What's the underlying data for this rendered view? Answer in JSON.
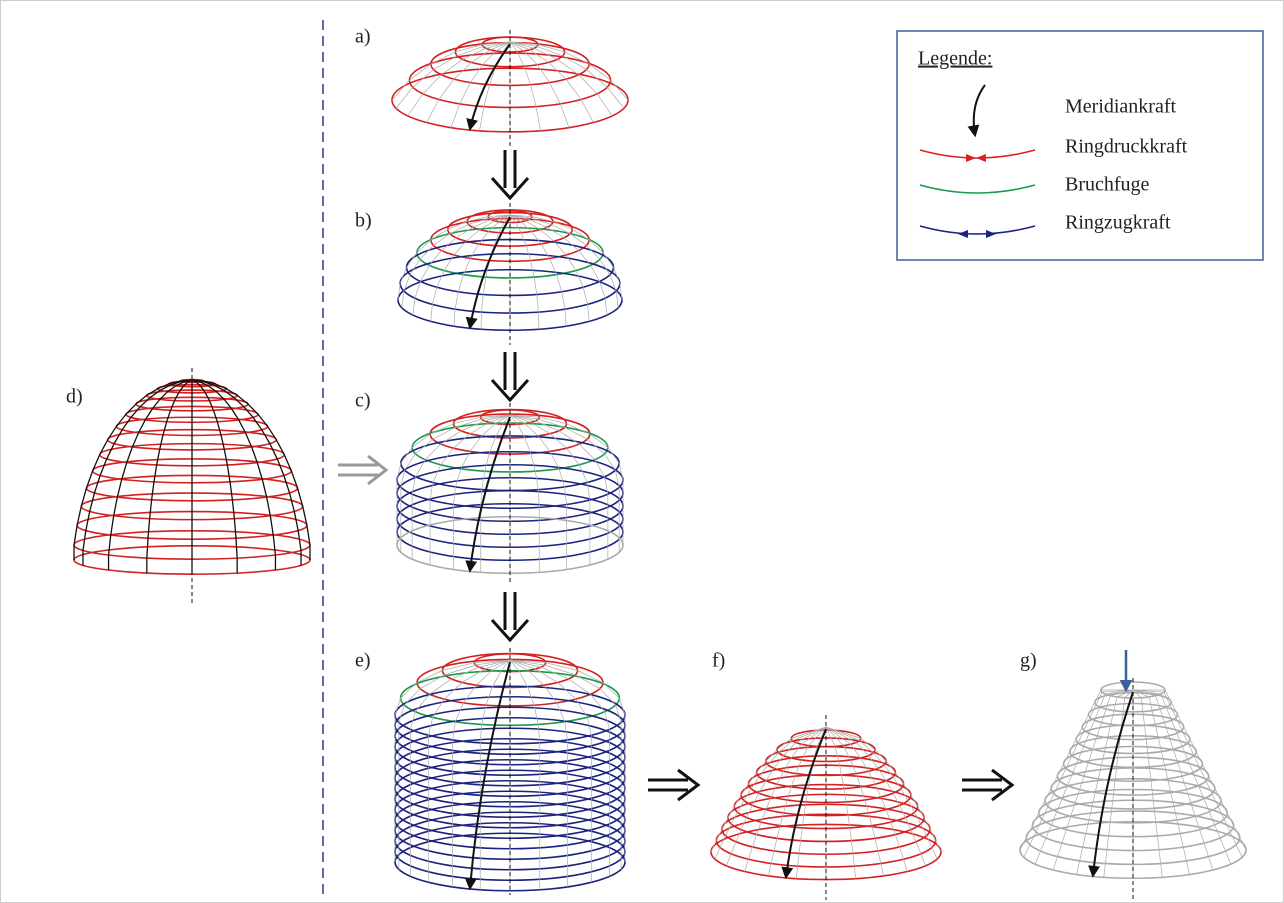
{
  "labels": {
    "a": "a)",
    "b": "b)",
    "c": "c)",
    "d": "d)",
    "e": "e)",
    "f": "f)",
    "g": "g)"
  },
  "legend": {
    "title": "Legende:",
    "items": [
      "Meridiankraft",
      "Ringdruckkraft",
      "Bruchfuge",
      "Ringzugkraft"
    ]
  }
}
